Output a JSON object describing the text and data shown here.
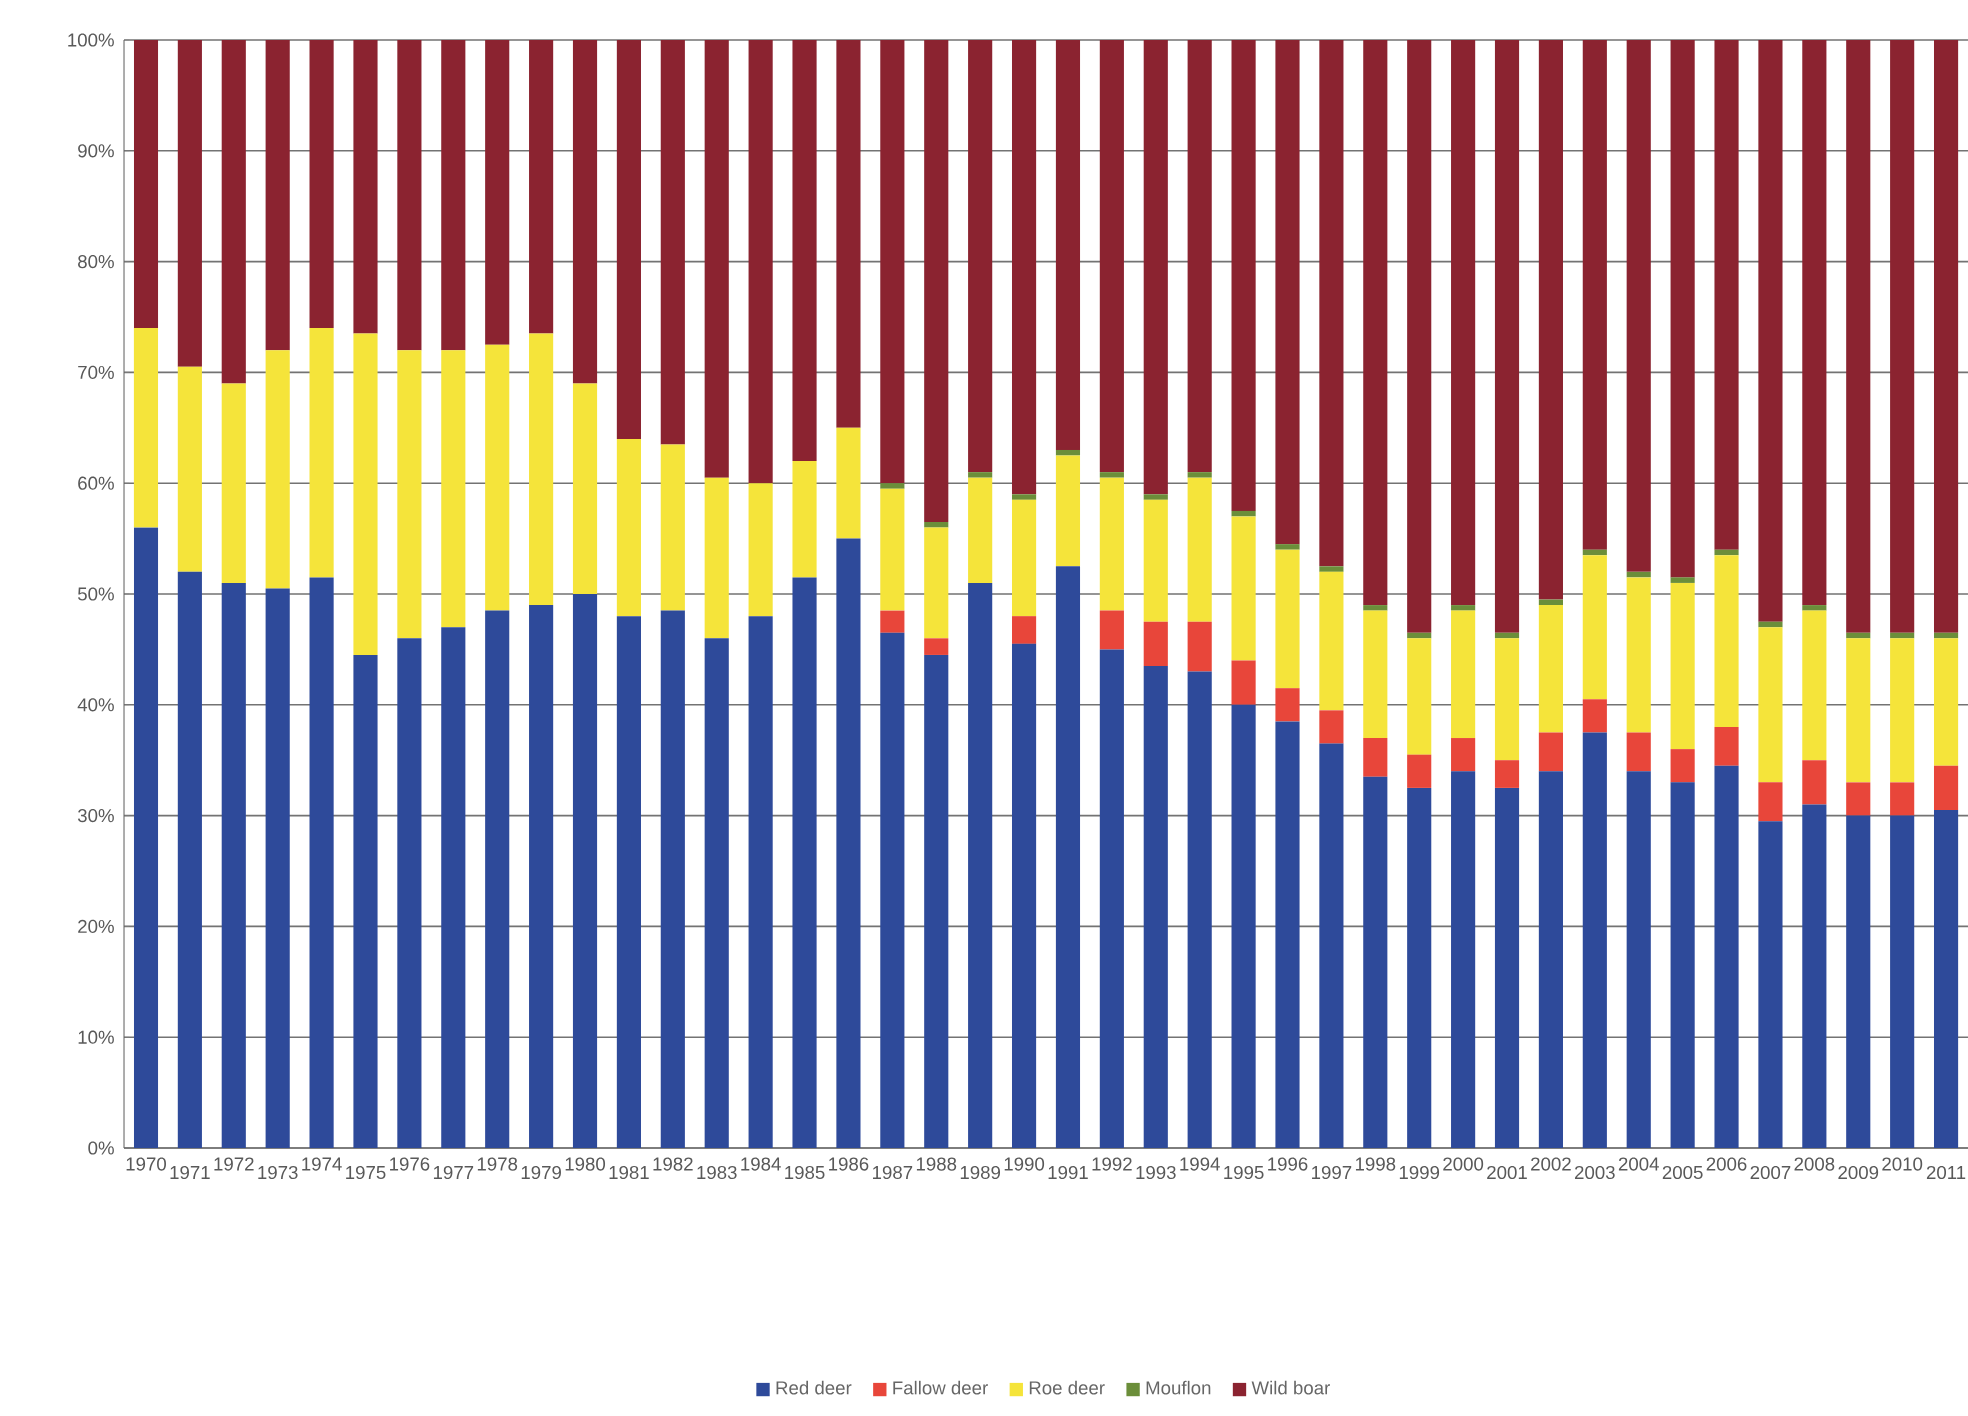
{
  "chart_data": {
    "type": "bar",
    "stacked": true,
    "grid": "y",
    "legend": "bottom",
    "categories": [
      "1970",
      "1971",
      "1972",
      "1973",
      "1974",
      "1975",
      "1976",
      "1977",
      "1978",
      "1979",
      "1980",
      "1981",
      "1982",
      "1983",
      "1984",
      "1985",
      "1986",
      "1987",
      "1988",
      "1989",
      "1990",
      "1991",
      "1992",
      "1993",
      "1994",
      "1995",
      "1996",
      "1997",
      "1998",
      "1999",
      "2000",
      "2001",
      "2002",
      "2003",
      "2004",
      "2005",
      "2006",
      "2007",
      "2008",
      "2009",
      "2010",
      "2011"
    ],
    "ylim": [
      0,
      100
    ],
    "yticks": [
      {
        "value": 0,
        "label": "0%"
      },
      {
        "value": 10,
        "label": "10%"
      },
      {
        "value": 20,
        "label": "20%"
      },
      {
        "value": 30,
        "label": "30%"
      },
      {
        "value": 40,
        "label": "40%"
      },
      {
        "value": 50,
        "label": "50%"
      },
      {
        "value": 60,
        "label": "60%"
      },
      {
        "value": 70,
        "label": "70%"
      },
      {
        "value": 80,
        "label": "80%"
      },
      {
        "value": 90,
        "label": "90%"
      },
      {
        "value": 100,
        "label": "100%"
      }
    ],
    "series": [
      {
        "name": "Red deer",
        "color": "#2e4a9a",
        "values": [
          56,
          52,
          51,
          50.5,
          51.5,
          44.5,
          46,
          47,
          48.5,
          49,
          50,
          48,
          48.5,
          46,
          48,
          51.5,
          55,
          46.5,
          44.5,
          51,
          45.5,
          52.5,
          45,
          43.5,
          43,
          40,
          38.5,
          36.5,
          33.5,
          32.5,
          34,
          32.5,
          34,
          37.5,
          34,
          33,
          34.5,
          29.5,
          31,
          30,
          30,
          30.5
        ]
      },
      {
        "name": "Fallow deer",
        "color": "#e8463a",
        "values": [
          0,
          0,
          0,
          0,
          0,
          0,
          0,
          0,
          0,
          0,
          0,
          0,
          0,
          0,
          0,
          0,
          0,
          2,
          1.5,
          0,
          2.5,
          0,
          3.5,
          4,
          4.5,
          4,
          3,
          3,
          3.5,
          3,
          3,
          2.5,
          3.5,
          3,
          3.5,
          3,
          3.5,
          3.5,
          4,
          3,
          3,
          4
        ]
      },
      {
        "name": "Roe deer",
        "color": "#f5e43a",
        "values": [
          18,
          18.5,
          18,
          21.5,
          22.5,
          29,
          26,
          25,
          24,
          24.5,
          19,
          16,
          15,
          14.5,
          12,
          10.5,
          10,
          11,
          10,
          9.5,
          10.5,
          10,
          12,
          11,
          13,
          13,
          12.5,
          12.5,
          11.5,
          10.5,
          11.5,
          11,
          11.5,
          13,
          14,
          15,
          15.5,
          14,
          13.5,
          13,
          13,
          11.5
        ]
      },
      {
        "name": "Mouflon",
        "color": "#6b8e3a",
        "values": [
          0,
          0,
          0,
          0,
          0,
          0,
          0,
          0,
          0,
          0,
          0,
          0,
          0,
          0,
          0,
          0,
          0,
          0.5,
          0.5,
          0.5,
          0.5,
          0.5,
          0.5,
          0.5,
          0.5,
          0.5,
          0.5,
          0.5,
          0.5,
          0.5,
          0.5,
          0.5,
          0.5,
          0.5,
          0.5,
          0.5,
          0.5,
          0.5,
          0.5,
          0.5,
          0.5,
          0.5
        ]
      },
      {
        "name": "Wild boar",
        "color": "#8b2330",
        "values": [
          26,
          29.5,
          31,
          28,
          26,
          26.5,
          28,
          28,
          27.5,
          26.5,
          31,
          36,
          36.5,
          39.5,
          40,
          38,
          35,
          40,
          43.5,
          39,
          41,
          37,
          39,
          41,
          39,
          42.5,
          45.5,
          47.5,
          51,
          53.5,
          51,
          53.5,
          50.5,
          46,
          48,
          48.5,
          46,
          52.5,
          51,
          53.5,
          53.5,
          53.5
        ]
      }
    ]
  }
}
